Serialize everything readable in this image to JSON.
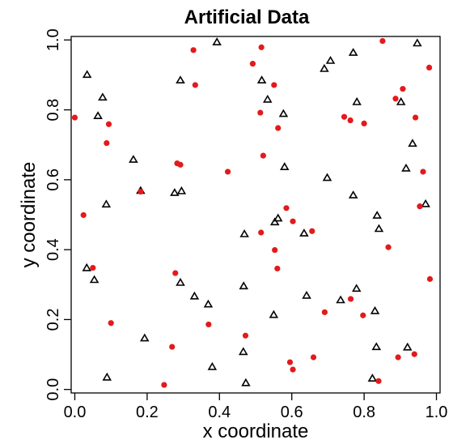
{
  "chart_data": {
    "type": "scatter",
    "title": "Artificial Data",
    "xlabel": "x coordinate",
    "ylabel": "y coordinate",
    "xlim": [
      -0.01,
      1.01
    ],
    "ylim": [
      -0.01,
      1.01
    ],
    "xticks": [
      0.0,
      0.2,
      0.4,
      0.6,
      0.8,
      1.0
    ],
    "yticks": [
      0.0,
      0.2,
      0.4,
      0.6,
      0.8,
      1.0
    ],
    "xtick_labels": [
      "0.0",
      "0.2",
      "0.4",
      "0.6",
      "0.8",
      "1.0"
    ],
    "ytick_labels": [
      "0.0",
      "0.2",
      "0.4",
      "0.6",
      "0.8",
      "1.0"
    ],
    "grid": false,
    "series": [
      {
        "marker": "open-triangle",
        "color": "#000000",
        "points": [
          [
            0.393,
            0.993
          ],
          [
            0.947,
            0.99
          ],
          [
            0.034,
            0.9
          ],
          [
            0.292,
            0.884
          ],
          [
            0.517,
            0.884
          ],
          [
            0.77,
            0.963
          ],
          [
            0.707,
            0.94
          ],
          [
            0.69,
            0.917
          ],
          [
            0.077,
            0.835
          ],
          [
            0.533,
            0.829
          ],
          [
            0.577,
            0.788
          ],
          [
            0.064,
            0.782
          ],
          [
            0.78,
            0.822
          ],
          [
            0.902,
            0.822
          ],
          [
            0.934,
            0.703
          ],
          [
            0.162,
            0.657
          ],
          [
            0.58,
            0.636
          ],
          [
            0.916,
            0.632
          ],
          [
            0.182,
            0.568
          ],
          [
            0.276,
            0.562
          ],
          [
            0.295,
            0.567
          ],
          [
            0.698,
            0.605
          ],
          [
            0.77,
            0.555
          ],
          [
            0.087,
            0.529
          ],
          [
            0.97,
            0.53
          ],
          [
            0.562,
            0.489
          ],
          [
            0.553,
            0.478
          ],
          [
            0.836,
            0.497
          ],
          [
            0.841,
            0.459
          ],
          [
            0.634,
            0.446
          ],
          [
            0.469,
            0.444
          ],
          [
            0.033,
            0.347
          ],
          [
            0.054,
            0.313
          ],
          [
            0.292,
            0.305
          ],
          [
            0.467,
            0.295
          ],
          [
            0.779,
            0.288
          ],
          [
            0.735,
            0.255
          ],
          [
            0.331,
            0.266
          ],
          [
            0.641,
            0.268
          ],
          [
            0.369,
            0.243
          ],
          [
            0.55,
            0.213
          ],
          [
            0.83,
            0.224
          ],
          [
            0.193,
            0.146
          ],
          [
            0.466,
            0.107
          ],
          [
            0.834,
            0.121
          ],
          [
            0.92,
            0.12
          ],
          [
            0.38,
            0.064
          ],
          [
            0.089,
            0.034
          ],
          [
            0.473,
            0.018
          ],
          [
            0.823,
            0.031
          ]
        ]
      },
      {
        "marker": "filled-circle",
        "color": "#e31a1c",
        "points": [
          [
            0.851,
            0.997
          ],
          [
            0.328,
            0.971
          ],
          [
            0.516,
            0.979
          ],
          [
            0.492,
            0.932
          ],
          [
            0.98,
            0.921
          ],
          [
            0.333,
            0.871
          ],
          [
            0.551,
            0.871
          ],
          [
            0.907,
            0.86
          ],
          [
            0.887,
            0.832
          ],
          [
            0.513,
            0.792
          ],
          [
            0.0,
            0.778
          ],
          [
            0.745,
            0.78
          ],
          [
            0.942,
            0.778
          ],
          [
            0.094,
            0.759
          ],
          [
            0.762,
            0.77
          ],
          [
            0.8,
            0.761
          ],
          [
            0.562,
            0.748
          ],
          [
            0.088,
            0.705
          ],
          [
            0.521,
            0.669
          ],
          [
            0.283,
            0.647
          ],
          [
            0.292,
            0.643
          ],
          [
            0.423,
            0.623
          ],
          [
            0.963,
            0.623
          ],
          [
            0.182,
            0.566
          ],
          [
            0.954,
            0.524
          ],
          [
            0.585,
            0.519
          ],
          [
            0.024,
            0.499
          ],
          [
            0.603,
            0.481
          ],
          [
            0.656,
            0.453
          ],
          [
            0.515,
            0.449
          ],
          [
            0.867,
            0.407
          ],
          [
            0.553,
            0.399
          ],
          [
            0.56,
            0.346
          ],
          [
            0.05,
            0.348
          ],
          [
            0.278,
            0.333
          ],
          [
            0.982,
            0.316
          ],
          [
            0.763,
            0.259
          ],
          [
            0.691,
            0.221
          ],
          [
            0.797,
            0.212
          ],
          [
            0.1,
            0.19
          ],
          [
            0.37,
            0.186
          ],
          [
            0.472,
            0.154
          ],
          [
            0.269,
            0.122
          ],
          [
            0.939,
            0.101
          ],
          [
            0.894,
            0.092
          ],
          [
            0.66,
            0.092
          ],
          [
            0.595,
            0.078
          ],
          [
            0.603,
            0.057
          ],
          [
            0.247,
            0.013
          ],
          [
            0.84,
            0.024
          ]
        ]
      }
    ]
  }
}
